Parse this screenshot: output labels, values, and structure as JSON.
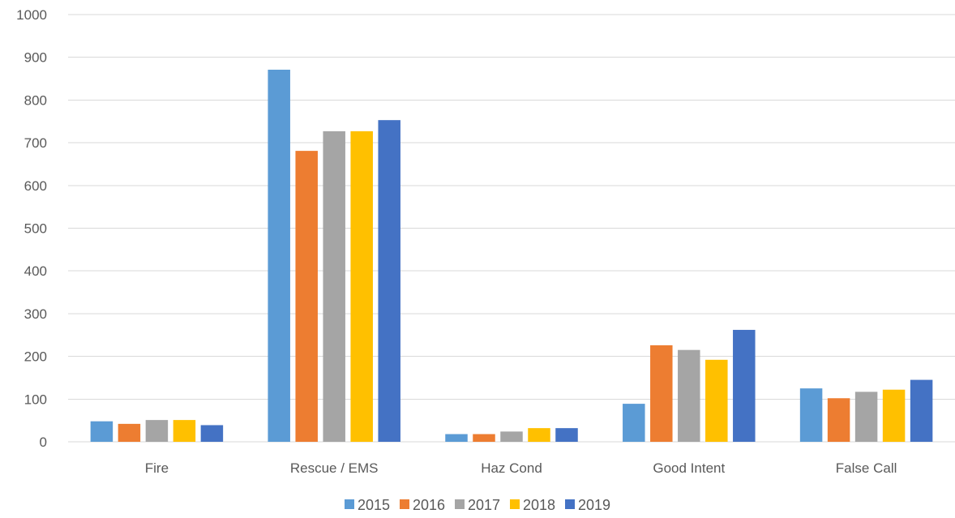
{
  "chart_data": {
    "type": "bar",
    "title": "",
    "xlabel": "",
    "ylabel": "",
    "ylim": [
      0,
      1000
    ],
    "yticks": [
      0,
      100,
      200,
      300,
      400,
      500,
      600,
      700,
      800,
      900,
      1000
    ],
    "categories": [
      "Fire",
      "Rescue / EMS",
      "Haz Cond",
      "Good Intent",
      "False Call"
    ],
    "series": [
      {
        "name": "2015",
        "color": "#5B9BD5",
        "values": [
          48,
          871,
          18,
          89,
          125
        ]
      },
      {
        "name": "2016",
        "color": "#ED7D31",
        "values": [
          42,
          681,
          18,
          226,
          102
        ]
      },
      {
        "name": "2017",
        "color": "#A5A5A5",
        "values": [
          51,
          727,
          24,
          215,
          117
        ]
      },
      {
        "name": "2018",
        "color": "#FFC000",
        "values": [
          51,
          727,
          32,
          192,
          122
        ]
      },
      {
        "name": "2019",
        "color": "#4472C4",
        "values": [
          39,
          753,
          32,
          262,
          145
        ]
      }
    ],
    "grid": true,
    "legend": "bottom",
    "colors": {
      "gridline": "#D9D9D9",
      "axis": "#D9D9D9",
      "text": "#595959"
    }
  }
}
